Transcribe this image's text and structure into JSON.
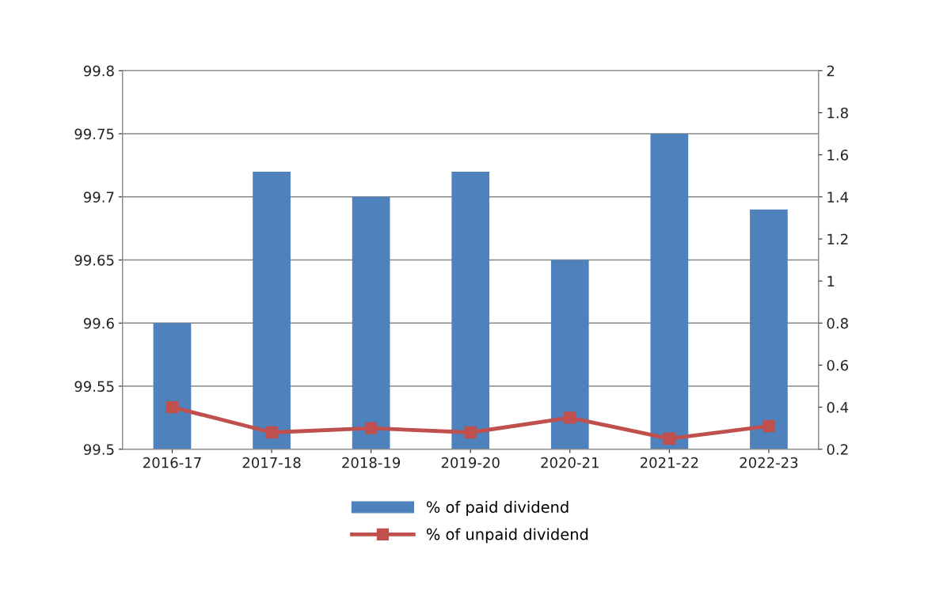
{
  "chart_data": {
    "type": "bar",
    "categories": [
      "2016-17",
      "2017-18",
      "2018-19",
      "2019-20",
      "2020-21",
      "2021-22",
      "2022-23"
    ],
    "series": [
      {
        "name": "% of paid dividend",
        "color": "#4f81bd",
        "values": [
          99.6,
          99.72,
          99.7,
          99.72,
          99.65,
          99.75,
          99.69
        ]
      },
      {
        "name": "% of unpaid dividend",
        "type": "line",
        "axis": "y2",
        "color": "#c0504d",
        "marker": "square",
        "values": [
          0.4,
          0.28,
          0.3,
          0.28,
          0.35,
          0.25,
          0.31
        ]
      }
    ],
    "ylim": [
      99.5,
      99.8
    ],
    "yticks": [
      99.5,
      99.55,
      99.6,
      99.65,
      99.7,
      99.75,
      99.8
    ],
    "y2lim": [
      0.2,
      2
    ],
    "y2ticks": [
      0.2,
      0.4,
      0.6,
      0.8,
      1,
      1.2,
      1.4,
      1.6,
      1.8,
      2
    ],
    "grid": "y",
    "legend": "bottom"
  }
}
